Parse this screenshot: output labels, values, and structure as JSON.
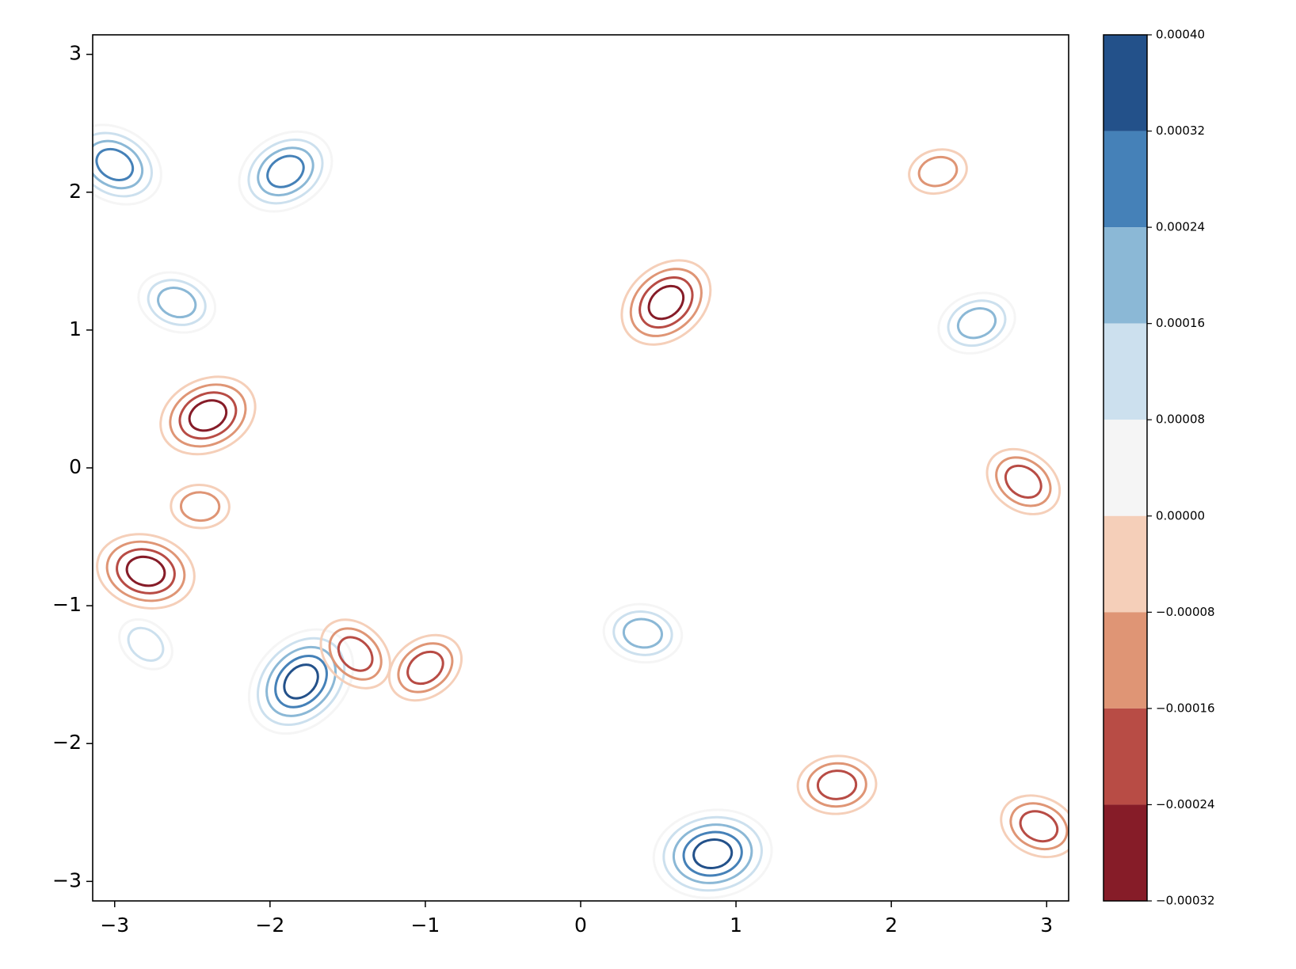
{
  "chart_data": {
    "type": "contour",
    "x": [
      -1.8,
      0.85,
      -3.0,
      -2.4,
      -2.8,
      0.55,
      1.65,
      2.85,
      2.55,
      -2.6,
      -1.0,
      -2.45,
      -2.8,
      2.3,
      2.95,
      -1.9,
      0.4,
      -1.45
    ],
    "y": [
      -1.55,
      -2.8,
      2.2,
      0.38,
      -0.75,
      1.2,
      -2.3,
      -0.1,
      1.05,
      1.2,
      -1.45,
      -0.28,
      -1.28,
      2.15,
      -2.6,
      2.15,
      -1.2,
      -1.35
    ],
    "values": [
      0.0004,
      0.0004,
      0.00032,
      -0.00032,
      -0.00032,
      -0.00032,
      -0.00024,
      -0.00024,
      0.00024,
      0.00024,
      -0.00024,
      -0.00016,
      0.00016,
      -0.00016,
      -0.00024,
      0.00032,
      0.00024,
      -0.00024
    ],
    "xlim": [
      -3.1416,
      3.1416
    ],
    "ylim": [
      -3.1416,
      3.1416
    ],
    "xticks": [
      {
        "value": -3,
        "label": "−3"
      },
      {
        "value": -2,
        "label": "−2"
      },
      {
        "value": -1,
        "label": "−1"
      },
      0,
      1,
      2,
      3
    ],
    "yticks": [
      {
        "value": -3,
        "label": "−3"
      },
      {
        "value": -2,
        "label": "−2"
      },
      {
        "value": -1,
        "label": "−1"
      },
      0,
      1,
      2,
      3
    ],
    "colorbar": {
      "lim": [
        -0.00032,
        0.0004
      ],
      "ticks": [
        {
          "value": 0.0004,
          "label": "0.00040"
        },
        0.00032,
        0.00024,
        0.00016,
        8e-05,
        {
          "value": 0,
          "label": "0.00000"
        },
        {
          "value": -8e-05,
          "label": "−0.00008"
        },
        {
          "value": -0.00016,
          "label": "−0.00016"
        },
        {
          "value": -0.00024,
          "label": "−0.00024"
        },
        {
          "value": -0.00032,
          "label": "−0.00032"
        }
      ],
      "colors": [
        "#23518a",
        "#4581b8",
        "#8bb8d6",
        "#cce0ee",
        "#f5f5f5",
        "#f5cfb9",
        "#df9575",
        "#b84c45",
        "#861c28"
      ]
    }
  }
}
